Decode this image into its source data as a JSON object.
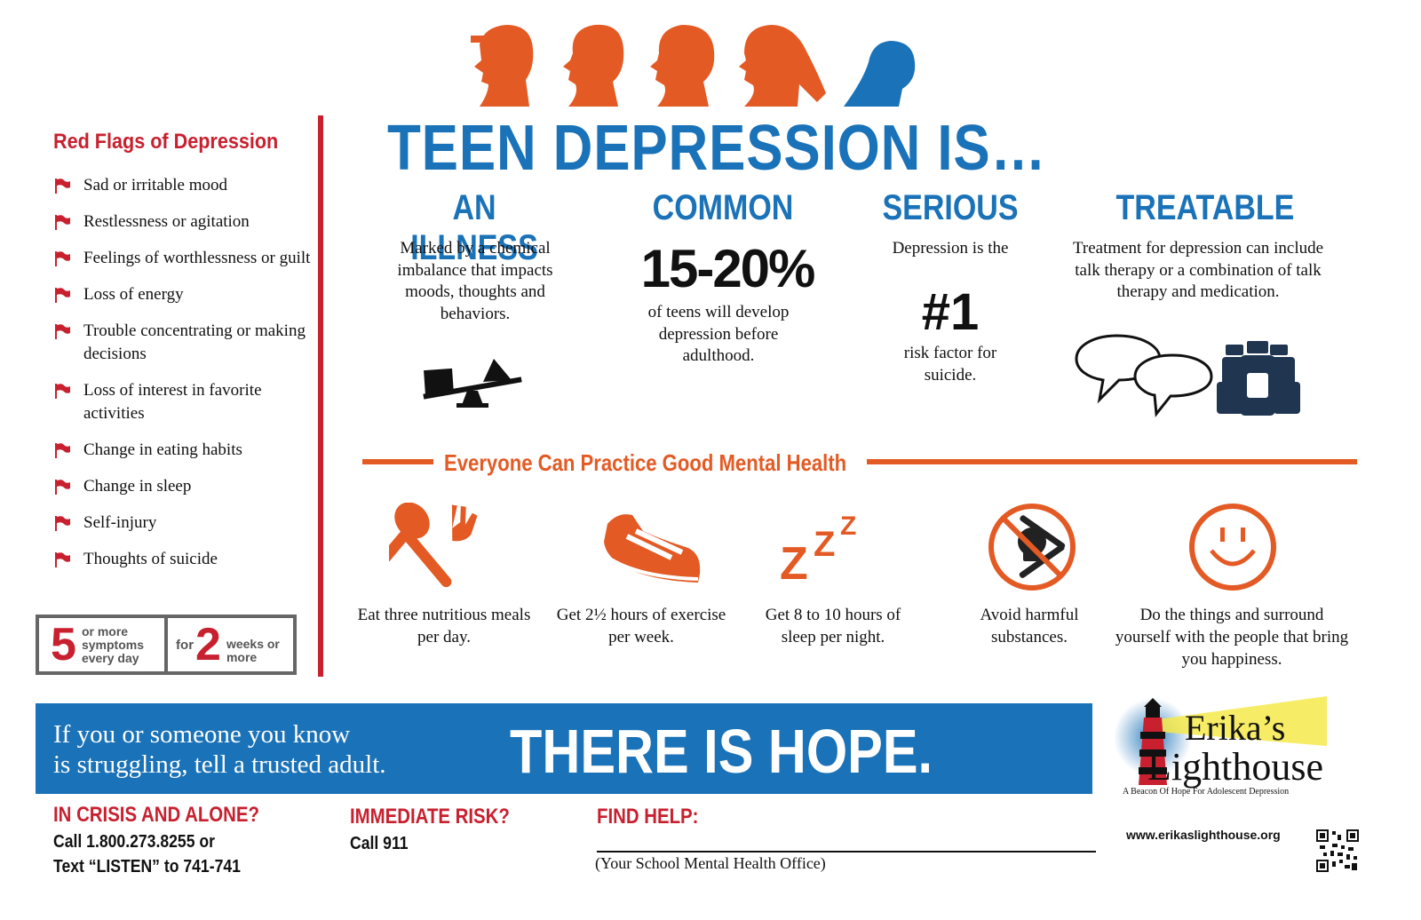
{
  "headline": "TEEN DEPRESSION IS…",
  "red_flags": {
    "title": "Red Flags of Depression",
    "items": [
      "Sad or irritable mood",
      "Restlessness or agitation",
      "Feelings of worthlessness or guilt",
      "Loss of energy",
      "Trouble concentrating or making decisions",
      "Loss of interest in favorite activities",
      "Change in eating habits",
      "Change in sleep",
      "Self-injury",
      "Thoughts of suicide"
    ],
    "criteria": {
      "left_number": "5",
      "left_text": "or more symptoms every day",
      "right_prefix": "for",
      "right_number": "2",
      "right_text": "weeks or more"
    }
  },
  "columns": {
    "illness": {
      "title": "AN ILLNESS",
      "text": "Marked by a chemical imbalance that impacts moods, thoughts and behaviors.",
      "icon": "seesaw-icon"
    },
    "common": {
      "title": "COMMON",
      "stat": "15-20%",
      "text": "of teens will develop depression before adulthood."
    },
    "serious": {
      "title": "SERIOUS",
      "text_top": "Depression is the",
      "stat": "#1",
      "text_bottom": "risk factor for suicide."
    },
    "treatable": {
      "title": "TREATABLE",
      "text": "Treatment for depression can include talk therapy or a combination of talk therapy and medication.",
      "icons": [
        "speech-bubbles-icon",
        "medicine-bottles-icon"
      ]
    }
  },
  "mental_health": {
    "title": "Everyone Can Practice Good Mental Health",
    "tips": [
      {
        "icon": "utensils-icon",
        "text": "Eat three nutritious meals per day."
      },
      {
        "icon": "sneaker-icon",
        "text": "Get 2½ hours of exercise per week."
      },
      {
        "icon": "zzz-icon",
        "text": "Get 8 to 10 hours of sleep per night."
      },
      {
        "icon": "no-skull-icon",
        "text": "Avoid harmful substances."
      },
      {
        "icon": "smiley-icon",
        "text": "Do the things and surround yourself with the people that bring you happiness."
      }
    ]
  },
  "banner": {
    "sub_line1": "If you or someone you know",
    "sub_line2": "is struggling, tell a trusted adult.",
    "main": "THERE IS HOPE."
  },
  "footer": {
    "crisis": {
      "title": "IN CRISIS AND ALONE?",
      "line1": "Call 1.800.273.8255 or",
      "line2": "Text “LISTEN” to 741-741"
    },
    "risk": {
      "title": "IMMEDIATE RISK?",
      "line1": "Call 911"
    },
    "help": {
      "title": "FIND HELP:",
      "caption": "(Your School Mental Health Office)"
    },
    "url": "www.erikaslighthouse.org"
  },
  "logo": {
    "line1": "Erika’s",
    "line2": "Lighthouse",
    "tagline": "A Beacon Of Hope For Adolescent Depression"
  },
  "colors": {
    "blue": "#1a72b8",
    "red": "#c8202f",
    "orange": "#e35a24",
    "navy": "#1f3550"
  }
}
